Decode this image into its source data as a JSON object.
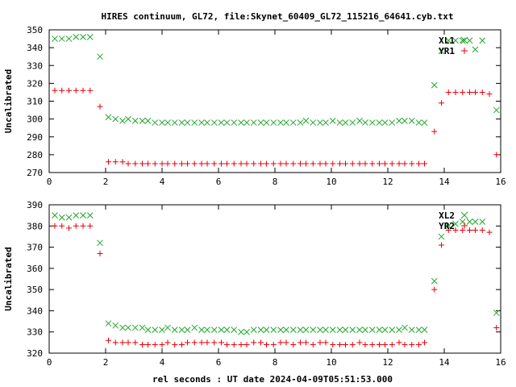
{
  "figure_title": "HIRES continuum, GL72, file:Skynet_60409_GL72_115216_64641.cyb.txt",
  "xlabel": "rel seconds : UT date 2024-04-09T05:51:53.000",
  "colors": {
    "red": "#e8000b",
    "green": "#22a62c",
    "frame": "#000000"
  },
  "chart_data": [
    {
      "type": "scatter",
      "title": "",
      "xlabel": "",
      "ylabel": "Uncalibrated",
      "xlim": [
        0,
        16
      ],
      "ylim": [
        270,
        350
      ],
      "x_ticks": [
        0,
        2,
        4,
        6,
        8,
        10,
        12,
        14,
        16
      ],
      "y_ticks": [
        270,
        280,
        290,
        300,
        310,
        320,
        330,
        340,
        350
      ],
      "legend_position": "top-right",
      "series": [
        {
          "name": "XL1",
          "marker": "x",
          "color": "#22a62c",
          "x": [
            0.2,
            0.45,
            0.7,
            0.95,
            1.2,
            1.45,
            1.8,
            2.1,
            2.35,
            2.6,
            2.8,
            3.05,
            3.3,
            3.5,
            3.75,
            4.0,
            4.2,
            4.45,
            4.7,
            4.9,
            5.15,
            5.4,
            5.6,
            5.85,
            6.1,
            6.3,
            6.55,
            6.8,
            7.0,
            7.25,
            7.5,
            7.7,
            7.95,
            8.2,
            8.4,
            8.65,
            8.9,
            9.1,
            9.35,
            9.6,
            9.8,
            10.05,
            10.3,
            10.5,
            10.75,
            11.0,
            11.2,
            11.45,
            11.7,
            11.9,
            12.15,
            12.4,
            12.6,
            12.85,
            13.1,
            13.3,
            13.65,
            13.9,
            14.15,
            14.4,
            14.65,
            14.9,
            15.1,
            15.35,
            15.85
          ],
          "y": [
            345,
            345,
            345,
            346,
            346,
            346,
            335,
            301,
            300,
            299,
            300,
            299,
            299,
            299,
            298,
            298,
            298,
            298,
            298,
            298,
            298,
            298,
            298,
            298,
            298,
            298,
            298,
            298,
            298,
            298,
            298,
            298,
            298,
            298,
            298,
            298,
            298,
            299,
            298,
            298,
            298,
            299,
            298,
            298,
            298,
            299,
            298,
            298,
            298,
            298,
            298,
            299,
            299,
            299,
            298,
            298,
            319,
            338,
            344,
            344,
            344,
            344,
            339,
            344,
            305
          ]
        },
        {
          "name": "YR1",
          "marker": "+",
          "color": "#e8000b",
          "x": [
            0.2,
            0.45,
            0.7,
            0.95,
            1.2,
            1.45,
            1.8,
            2.1,
            2.35,
            2.6,
            2.8,
            3.05,
            3.3,
            3.5,
            3.75,
            4.0,
            4.2,
            4.45,
            4.7,
            4.9,
            5.15,
            5.4,
            5.6,
            5.85,
            6.1,
            6.3,
            6.55,
            6.8,
            7.0,
            7.25,
            7.5,
            7.7,
            7.95,
            8.2,
            8.4,
            8.65,
            8.9,
            9.1,
            9.35,
            9.6,
            9.8,
            10.05,
            10.3,
            10.5,
            10.75,
            11.0,
            11.2,
            11.45,
            11.7,
            11.9,
            12.15,
            12.4,
            12.6,
            12.85,
            13.1,
            13.3,
            13.65,
            13.9,
            14.15,
            14.4,
            14.65,
            14.9,
            15.1,
            15.35,
            15.6,
            15.85
          ],
          "y": [
            316,
            316,
            316,
            316,
            316,
            316,
            307,
            276,
            276,
            276,
            275,
            275,
            275,
            275,
            275,
            275,
            275,
            275,
            275,
            275,
            275,
            275,
            275,
            275,
            275,
            275,
            275,
            275,
            275,
            275,
            275,
            275,
            275,
            275,
            275,
            275,
            275,
            275,
            275,
            275,
            275,
            275,
            275,
            275,
            275,
            275,
            275,
            275,
            275,
            275,
            275,
            275,
            275,
            275,
            275,
            275,
            293,
            309,
            315,
            315,
            315,
            315,
            315,
            315,
            314,
            280
          ]
        }
      ]
    },
    {
      "type": "scatter",
      "title": "",
      "xlabel": "rel seconds : UT date 2024-04-09T05:51:53.000",
      "ylabel": "Uncalibrated",
      "xlim": [
        0,
        16
      ],
      "ylim": [
        320,
        390
      ],
      "x_ticks": [
        0,
        2,
        4,
        6,
        8,
        10,
        12,
        14,
        16
      ],
      "y_ticks": [
        320,
        330,
        340,
        350,
        360,
        370,
        380,
        390
      ],
      "legend_position": "top-right",
      "series": [
        {
          "name": "XL2",
          "marker": "x",
          "color": "#22a62c",
          "x": [
            0.2,
            0.45,
            0.7,
            0.95,
            1.2,
            1.45,
            1.8,
            2.1,
            2.35,
            2.6,
            2.8,
            3.05,
            3.3,
            3.5,
            3.75,
            4.0,
            4.2,
            4.45,
            4.7,
            4.9,
            5.15,
            5.4,
            5.6,
            5.85,
            6.1,
            6.3,
            6.55,
            6.8,
            7.0,
            7.25,
            7.5,
            7.7,
            7.95,
            8.2,
            8.4,
            8.65,
            8.9,
            9.1,
            9.35,
            9.6,
            9.8,
            10.05,
            10.3,
            10.5,
            10.75,
            11.0,
            11.2,
            11.45,
            11.7,
            11.9,
            12.15,
            12.4,
            12.6,
            12.85,
            13.1,
            13.3,
            13.65,
            13.9,
            14.15,
            14.4,
            14.65,
            14.9,
            15.1,
            15.35,
            15.85
          ],
          "y": [
            385,
            384,
            384,
            385,
            385,
            385,
            372,
            334,
            333,
            332,
            332,
            332,
            332,
            331,
            331,
            331,
            332,
            331,
            331,
            331,
            332,
            331,
            331,
            331,
            331,
            331,
            331,
            330,
            330,
            331,
            331,
            331,
            331,
            331,
            331,
            331,
            331,
            331,
            331,
            331,
            331,
            331,
            331,
            331,
            331,
            331,
            331,
            331,
            331,
            331,
            331,
            331,
            332,
            331,
            331,
            331,
            354,
            375,
            380,
            381,
            382,
            382,
            382,
            382,
            339
          ]
        },
        {
          "name": "YR2",
          "marker": "+",
          "color": "#e8000b",
          "x": [
            0.2,
            0.45,
            0.7,
            0.95,
            1.2,
            1.45,
            1.8,
            2.1,
            2.35,
            2.6,
            2.8,
            3.05,
            3.3,
            3.5,
            3.75,
            4.0,
            4.2,
            4.45,
            4.7,
            4.9,
            5.15,
            5.4,
            5.6,
            5.85,
            6.1,
            6.3,
            6.55,
            6.8,
            7.0,
            7.25,
            7.5,
            7.7,
            7.95,
            8.2,
            8.4,
            8.65,
            8.9,
            9.1,
            9.35,
            9.6,
            9.8,
            10.05,
            10.3,
            10.5,
            10.75,
            11.0,
            11.2,
            11.45,
            11.7,
            11.9,
            12.15,
            12.4,
            12.6,
            12.85,
            13.1,
            13.3,
            13.65,
            13.9,
            14.15,
            14.4,
            14.65,
            14.9,
            15.1,
            15.35,
            15.6,
            15.85
          ],
          "y": [
            380,
            380,
            379,
            380,
            380,
            380,
            367,
            326,
            325,
            325,
            325,
            325,
            324,
            324,
            324,
            324,
            325,
            324,
            324,
            325,
            325,
            325,
            325,
            325,
            325,
            324,
            324,
            324,
            324,
            325,
            325,
            324,
            324,
            325,
            325,
            324,
            325,
            325,
            324,
            325,
            325,
            324,
            324,
            324,
            324,
            325,
            324,
            324,
            324,
            324,
            324,
            325,
            324,
            324,
            324,
            325,
            350,
            371,
            378,
            378,
            378,
            378,
            378,
            378,
            377,
            332
          ]
        }
      ]
    }
  ]
}
